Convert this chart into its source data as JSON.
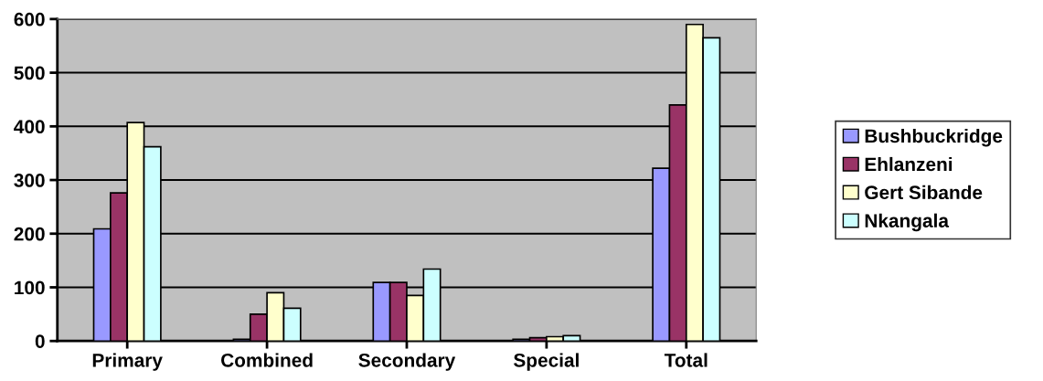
{
  "chart_data": {
    "type": "bar",
    "categories": [
      "Primary",
      "Combined",
      "Secondary",
      "Special",
      "Total"
    ],
    "series": [
      {
        "name": "Bushbuckridge",
        "color": "#9999ff",
        "values": [
          209,
          3,
          109,
          3,
          322
        ]
      },
      {
        "name": "Ehlanzeni",
        "color": "#993366",
        "values": [
          276,
          50,
          109,
          6,
          440
        ]
      },
      {
        "name": "Gert Sibande",
        "color": "#ffffcc",
        "values": [
          407,
          90,
          85,
          8,
          590
        ]
      },
      {
        "name": "Nkangala",
        "color": "#ccffff",
        "values": [
          362,
          61,
          134,
          10,
          565
        ]
      }
    ],
    "ylim": [
      0,
      600
    ],
    "yticks": [
      0,
      100,
      200,
      300,
      400,
      500,
      600
    ],
    "grid": "y",
    "legend": "right"
  }
}
